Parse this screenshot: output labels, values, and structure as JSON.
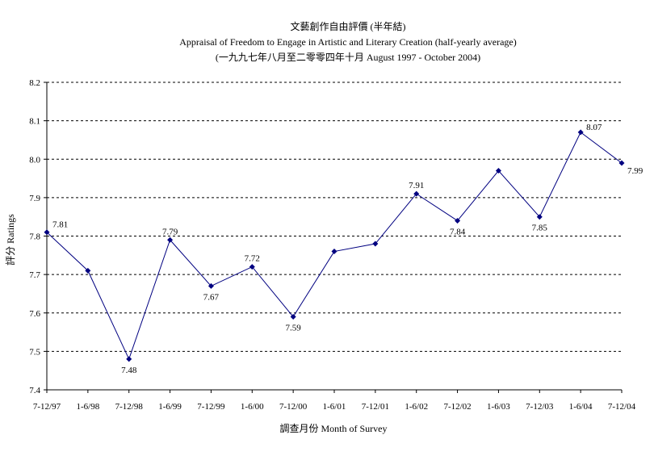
{
  "chart_data": {
    "type": "line",
    "title": "文藝創作自由評價 (半年結)",
    "subtitle": "Appraisal of Freedom to Engage in Artistic and Literary Creation (half-yearly average)",
    "subtitle2": "(一九九七年八月至二零零四年十月 August 1997 - October 2004)",
    "xlabel": "調查月份 Month of Survey",
    "ylabel": "評分 Ratings",
    "categories": [
      "7-12/97",
      "1-6/98",
      "7-12/98",
      "1-6/99",
      "7-12/99",
      "1-6/00",
      "7-12/00",
      "1-6/01",
      "7-12/01",
      "1-6/02",
      "7-12/02",
      "1-6/03",
      "7-12/03",
      "1-6/04",
      "7-12/04"
    ],
    "series": [
      {
        "values": [
          7.81,
          7.71,
          7.48,
          7.79,
          7.67,
          7.72,
          7.59,
          7.76,
          7.78,
          7.91,
          7.84,
          7.97,
          7.85,
          8.07,
          7.99
        ],
        "labels": [
          "7.81",
          "",
          "7.48",
          "7.79",
          "7.67",
          "7.72",
          "7.59",
          "",
          "",
          "7.91",
          "7.84",
          "",
          "7.85",
          "8.07",
          "7.99"
        ],
        "color": "#000080"
      }
    ],
    "ylim": [
      7.4,
      8.2
    ],
    "yticks": [
      "7.4",
      "7.5",
      "7.6",
      "7.7",
      "7.8",
      "7.9",
      "8.0",
      "8.1",
      "8.2"
    ],
    "grid": true,
    "grid_style": "dashed",
    "legend": "none"
  }
}
